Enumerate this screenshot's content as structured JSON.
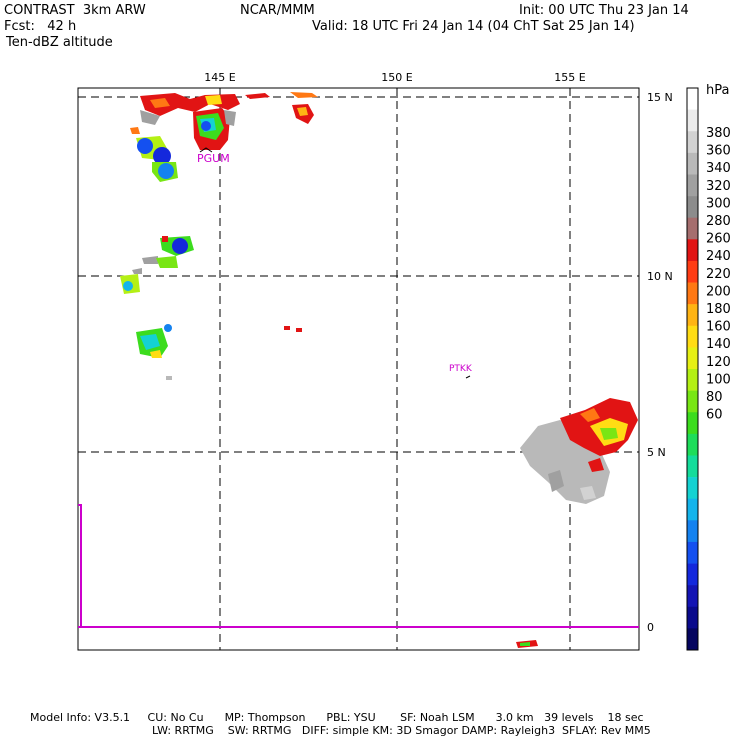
{
  "header": {
    "model": "CONTRAST  3km ARW",
    "center": "NCAR/MMM",
    "init": "Init: 00 UTC Thu 23 Jan 14",
    "fcst": "Fcst:   42 h",
    "valid": "Valid: 18 UTC Fri 24 Jan 14 (04 ChT Sat 25 Jan 14)",
    "field": "Ten-dBZ altitude"
  },
  "map": {
    "lon_labels": [
      "145 E",
      "150 E",
      "155 E"
    ],
    "lat_labels": [
      "15 N",
      "10 N",
      "5 N",
      "0"
    ],
    "stations": [
      {
        "id": "PGUM",
        "lon": 144.8,
        "lat": 13.5
      },
      {
        "id": "PTKK",
        "lon": 151.8,
        "lat": 7.4
      }
    ]
  },
  "colorbar": {
    "unit": "hPa",
    "levels": [
      "380",
      "360",
      "340",
      "320",
      "300",
      "280",
      "260",
      "240",
      "220",
      "200",
      "180",
      "160",
      "140",
      "120",
      "100",
      "80",
      "60"
    ],
    "colors": [
      "#ffffff",
      "#ebebeb",
      "#d2d2d2",
      "#b9b9b9",
      "#a0a0a0",
      "#8c8c8c",
      "#a56e6e",
      "#e11414",
      "#ff3c14",
      "#ff7814",
      "#ffb414",
      "#ffdc14",
      "#e6f014",
      "#b4f014",
      "#78e614",
      "#3cdc1e",
      "#1edc5a",
      "#14dc9b",
      "#14d2d2",
      "#14b4eb",
      "#1482f0",
      "#1450f0",
      "#1428dc",
      "#1414b4",
      "#0a0a8c",
      "#05055f"
    ]
  },
  "footer": {
    "line1": "Model Info: V3.5.1     CU: No Cu      MP: Thompson      PBL: YSU       SF: Noah LSM      3.0 km   39 levels    18 sec",
    "line2": "LW: RRTMG    SW: RRTMG   DIFF: simple KM: 3D Smagor DAMP: Rayleigh3  SFLAY: Rev MM5"
  }
}
